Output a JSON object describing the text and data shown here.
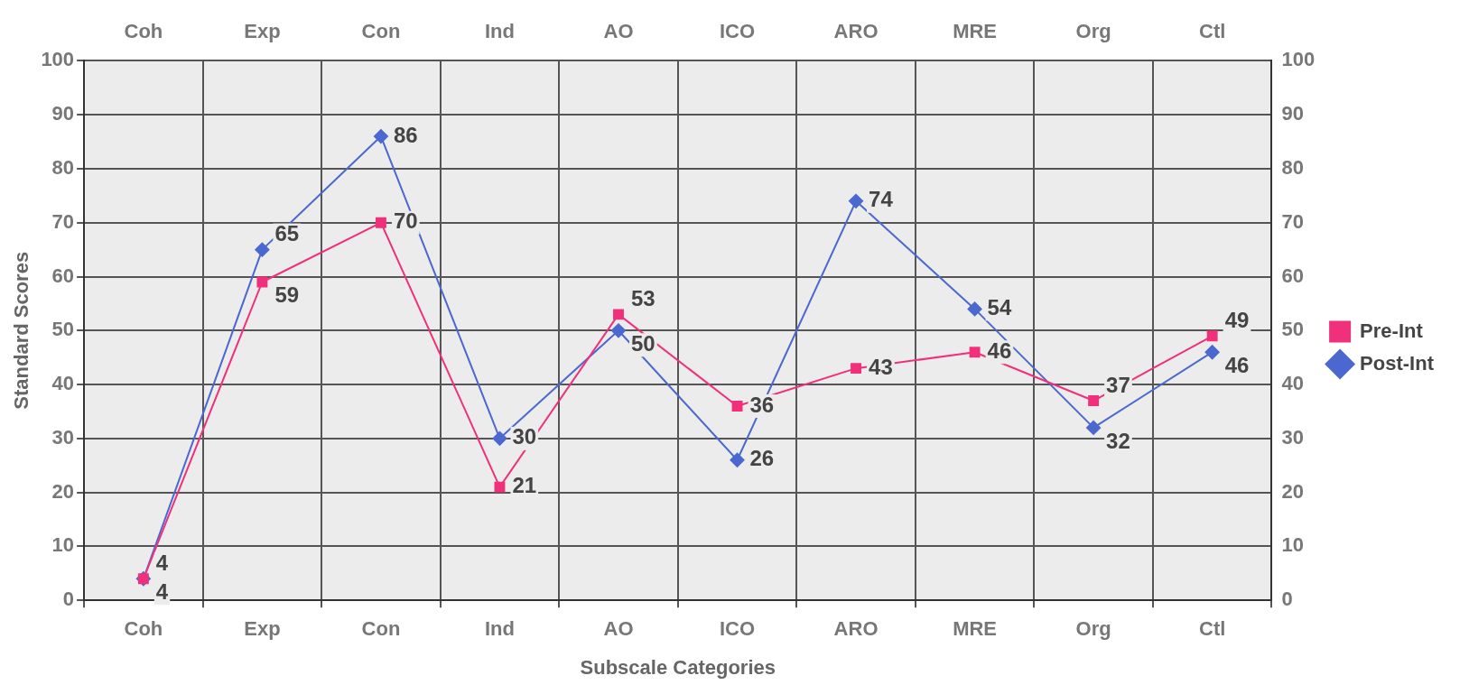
{
  "chart_data": {
    "type": "line",
    "xlabel": "Subscale Categories",
    "ylabel": "Standard Scores",
    "categories": [
      "Coh",
      "Exp",
      "Con",
      "Ind",
      "AO",
      "ICO",
      "ARO",
      "MRE",
      "Org",
      "Ctl"
    ],
    "series": [
      {
        "name": "Pre-Int",
        "color": "#f0307a",
        "marker": "square",
        "values": [
          4,
          59,
          70,
          21,
          53,
          36,
          43,
          46,
          37,
          49
        ]
      },
      {
        "name": "Post-Int",
        "color": "#4a68d0",
        "marker": "diamond",
        "values": [
          4,
          65,
          86,
          30,
          50,
          26,
          74,
          54,
          32,
          46
        ]
      }
    ],
    "ylim": [
      0,
      100
    ],
    "yticks": [
      0,
      10,
      20,
      30,
      40,
      50,
      60,
      70,
      80,
      90,
      100
    ],
    "y2lim": [
      0,
      100
    ],
    "y2ticks": [
      0,
      10,
      20,
      30,
      40,
      50,
      60,
      70,
      80,
      90,
      100
    ],
    "grid": true,
    "legend": "right",
    "data_labels": true,
    "line_style": "solid"
  }
}
